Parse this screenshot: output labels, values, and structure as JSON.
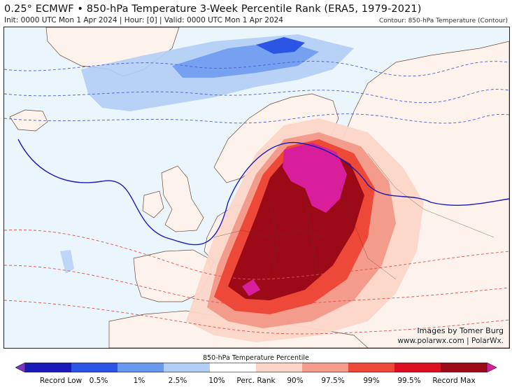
{
  "header": {
    "title": "0.25° ECMWF • 850-hPa Temperature 3-Week Percentile Rank (ERA5, 1979-2021)",
    "subtitle": "Init: 0000 UTC Mon 1 Apr 2024 | Hour: [0] | Valid: 0000 UTC Mon 1 Apr 2024",
    "contour_note": "Contour: 850-hPa Temperature (Contour)"
  },
  "credits": {
    "line1": "Images by Tomer Burg",
    "line2": "www.polarwx.com | PolarWx."
  },
  "legend": {
    "title": "850-hPa Temperature Percentile",
    "labels": [
      "Record Low",
      "0.5%",
      "1%",
      "2.5%",
      "10%",
      "Perc. Rank",
      "90%",
      "97.5%",
      "99%",
      "99.5%",
      "Record Max"
    ],
    "colors": [
      "#7a32c8",
      "#1a1ab8",
      "#2c55e6",
      "#6a98ee",
      "#b2cef6",
      "#ffffff",
      "#fbd6c8",
      "#f49c8c",
      "#ee4838",
      "#dc1020",
      "#9c0a18",
      "#d81e9a"
    ]
  },
  "map": {
    "colors": {
      "ocean": "#eaf6fb",
      "land": "#fdf3ec",
      "cold_light": "#b2cef6",
      "cold_mid": "#6a98ee",
      "cold_strong": "#2c55e6",
      "warm_light": "#fbd6c8",
      "warm_mid": "#f49c8c",
      "warm_strong": "#ee4838",
      "warm_extreme": "#9c0a18",
      "record_max": "#d81e9a",
      "zero_contour": "#1a1ab8",
      "warm_contour": "#e0504a",
      "cold_contour": "#4a5fd8"
    }
  }
}
